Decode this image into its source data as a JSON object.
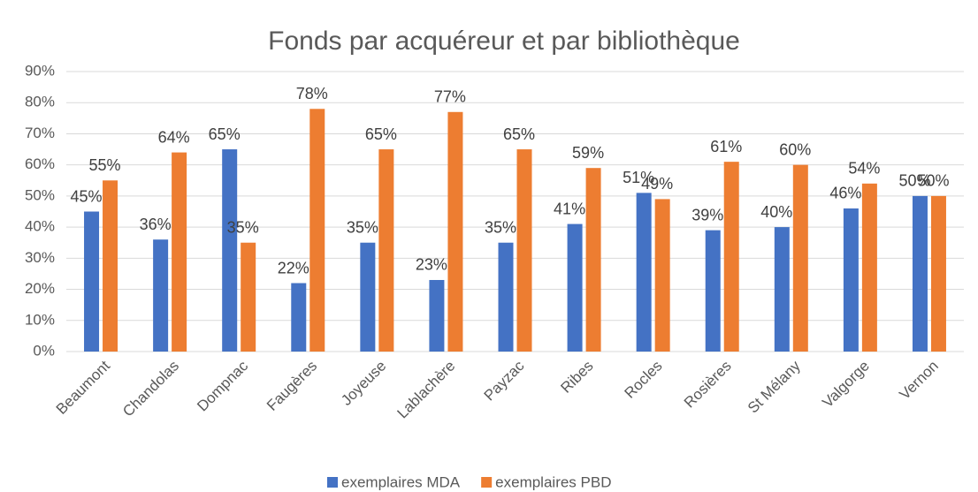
{
  "chart_data": {
    "type": "bar",
    "title": "Fonds par acquéreur et par bibliothèque",
    "categories": [
      "Beaumont",
      "Chandolas",
      "Dompnac",
      "Faugères",
      "Joyeuse",
      "Lablachère",
      "Payzac",
      "Ribes",
      "Rocles",
      "Rosières",
      "St Mélany",
      "Valgorge",
      "Vernon"
    ],
    "series": [
      {
        "name": "exemplaires MDA",
        "color": "#4472c4",
        "values": [
          45,
          36,
          65,
          22,
          35,
          23,
          35,
          41,
          51,
          39,
          40,
          46,
          50
        ],
        "value_labels": [
          "45%",
          "36%",
          "65%",
          "22%",
          "35%",
          "23%",
          "35%",
          "41%",
          "51%",
          "39%",
          "40%",
          "46%",
          "50%"
        ]
      },
      {
        "name": "exemplaires PBD",
        "color": "#ed7d31",
        "values": [
          55,
          64,
          35,
          78,
          65,
          77,
          65,
          59,
          49,
          61,
          60,
          54,
          50
        ],
        "value_labels": [
          "55%",
          "64%",
          "35%",
          "78%",
          "65%",
          "77%",
          "65%",
          "59%",
          "49%",
          "61%",
          "60%",
          "54%",
          "50%"
        ]
      }
    ],
    "ylim": [
      0,
      90
    ],
    "yticks": [
      {
        "value": 0,
        "label": "0%"
      },
      {
        "value": 10,
        "label": "10%"
      },
      {
        "value": 20,
        "label": "20%"
      },
      {
        "value": 30,
        "label": "30%"
      },
      {
        "value": 40,
        "label": "40%"
      },
      {
        "value": 50,
        "label": "50%"
      },
      {
        "value": 60,
        "label": "60%"
      },
      {
        "value": 70,
        "label": "70%"
      },
      {
        "value": 80,
        "label": "80%"
      },
      {
        "value": 90,
        "label": "90%"
      }
    ],
    "grid": true,
    "legend": "bottom"
  }
}
